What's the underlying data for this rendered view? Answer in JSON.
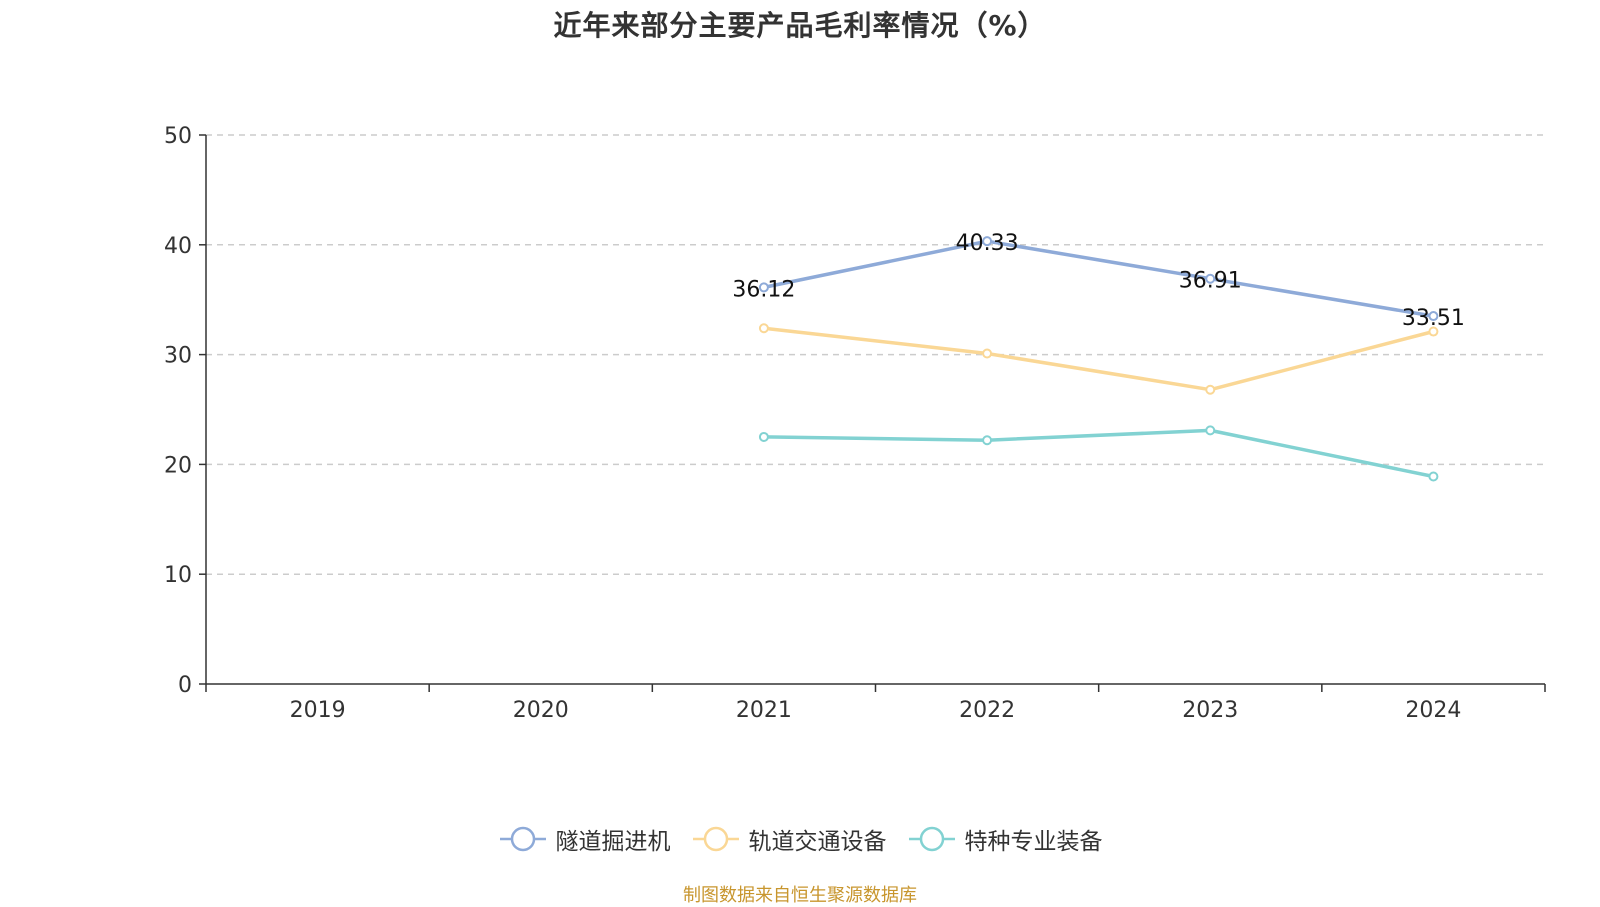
{
  "chart_data": {
    "type": "line",
    "title": "近年来部分主要产品毛利率情况（%）",
    "categories": [
      "2019",
      "2020",
      "2021",
      "2022",
      "2023",
      "2024"
    ],
    "ylim": [
      0,
      50
    ],
    "yticks": [
      0,
      10,
      20,
      30,
      40,
      50
    ],
    "xlabel": "",
    "ylabel": "",
    "grid": true,
    "legend_position": "bottom",
    "series": [
      {
        "name": "隧道掘进机",
        "color": "#8eaad8",
        "values": [
          null,
          null,
          36.12,
          40.33,
          36.91,
          33.51
        ],
        "show_labels": true
      },
      {
        "name": "轨道交通设备",
        "color": "#fad795",
        "values": [
          null,
          null,
          32.4,
          30.1,
          26.8,
          32.1
        ],
        "show_labels": false
      },
      {
        "name": "特种专业装备",
        "color": "#82d2d2",
        "values": [
          null,
          null,
          22.5,
          22.2,
          23.1,
          18.9
        ],
        "show_labels": false
      }
    ],
    "source": "制图数据来自恒生聚源数据库"
  }
}
